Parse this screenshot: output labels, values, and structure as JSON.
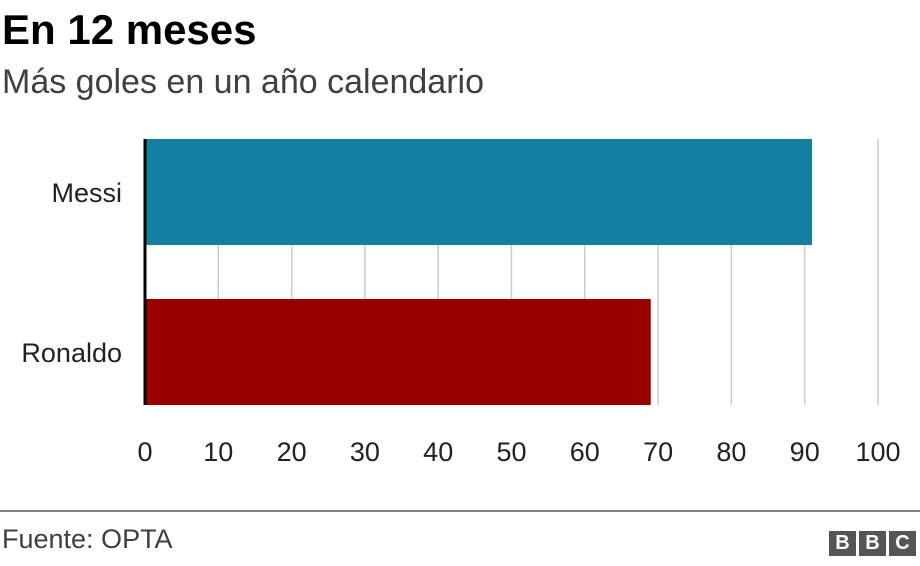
{
  "title": "En 12 meses",
  "subtitle": "Más goles en un año calendario",
  "source": "Fuente: OPTA",
  "logo": [
    "B",
    "B",
    "C"
  ],
  "colors": {
    "messi": "#1380A1",
    "ronaldo": "#990000",
    "grid": "#cccccc",
    "axis": "#000000"
  },
  "chart_data": {
    "type": "bar",
    "orientation": "horizontal",
    "categories": [
      "Messi",
      "Ronaldo"
    ],
    "values": [
      91,
      69
    ],
    "xlim": [
      0,
      100
    ],
    "xticks": [
      0,
      10,
      20,
      30,
      40,
      50,
      60,
      70,
      80,
      90,
      100
    ],
    "title": "En 12 meses",
    "subtitle": "Más goles en un año calendario",
    "grid": true
  }
}
